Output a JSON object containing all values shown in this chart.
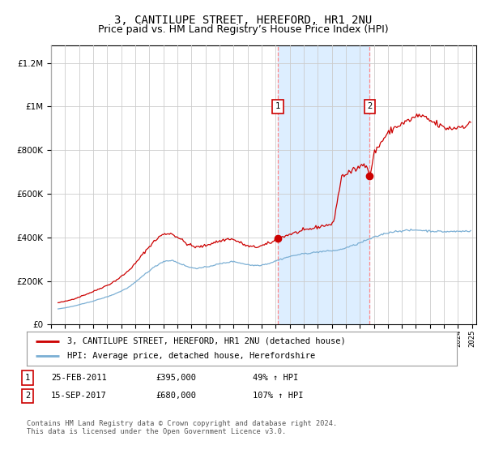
{
  "title": "3, CANTILUPE STREET, HEREFORD, HR1 2NU",
  "subtitle": "Price paid vs. HM Land Registry’s House Price Index (HPI)",
  "title_fontsize": 10,
  "subtitle_fontsize": 9,
  "ylabel_ticks": [
    "£0",
    "£200K",
    "£400K",
    "£600K",
    "£800K",
    "£1M",
    "£1.2M"
  ],
  "ytick_values": [
    0,
    200000,
    400000,
    600000,
    800000,
    1000000,
    1200000
  ],
  "ylim": [
    0,
    1280000
  ],
  "xlim_start": 1995.0,
  "xlim_end": 2025.3,
  "transaction1_date": 2011.15,
  "transaction1_price": 395000,
  "transaction1_label": "1",
  "transaction1_display": "25-FEB-2011",
  "transaction1_price_str": "£395,000",
  "transaction1_hpi_str": "49% ↑ HPI",
  "transaction2_date": 2017.71,
  "transaction2_price": 680000,
  "transaction2_label": "2",
  "transaction2_display": "15-SEP-2017",
  "transaction2_price_str": "£680,000",
  "transaction2_hpi_str": "107% ↑ HPI",
  "red_line_color": "#cc0000",
  "blue_line_color": "#7bafd4",
  "shade_color": "#ddeeff",
  "vline_color": "#ff8888",
  "marker_box_color": "#cc0000",
  "background_color": "#ffffff",
  "grid_color": "#cccccc",
  "legend_line1": "3, CANTILUPE STREET, HEREFORD, HR1 2NU (detached house)",
  "legend_line2": "HPI: Average price, detached house, Herefordshire",
  "footer": "Contains HM Land Registry data © Crown copyright and database right 2024.\nThis data is licensed under the Open Government Licence v3.0."
}
